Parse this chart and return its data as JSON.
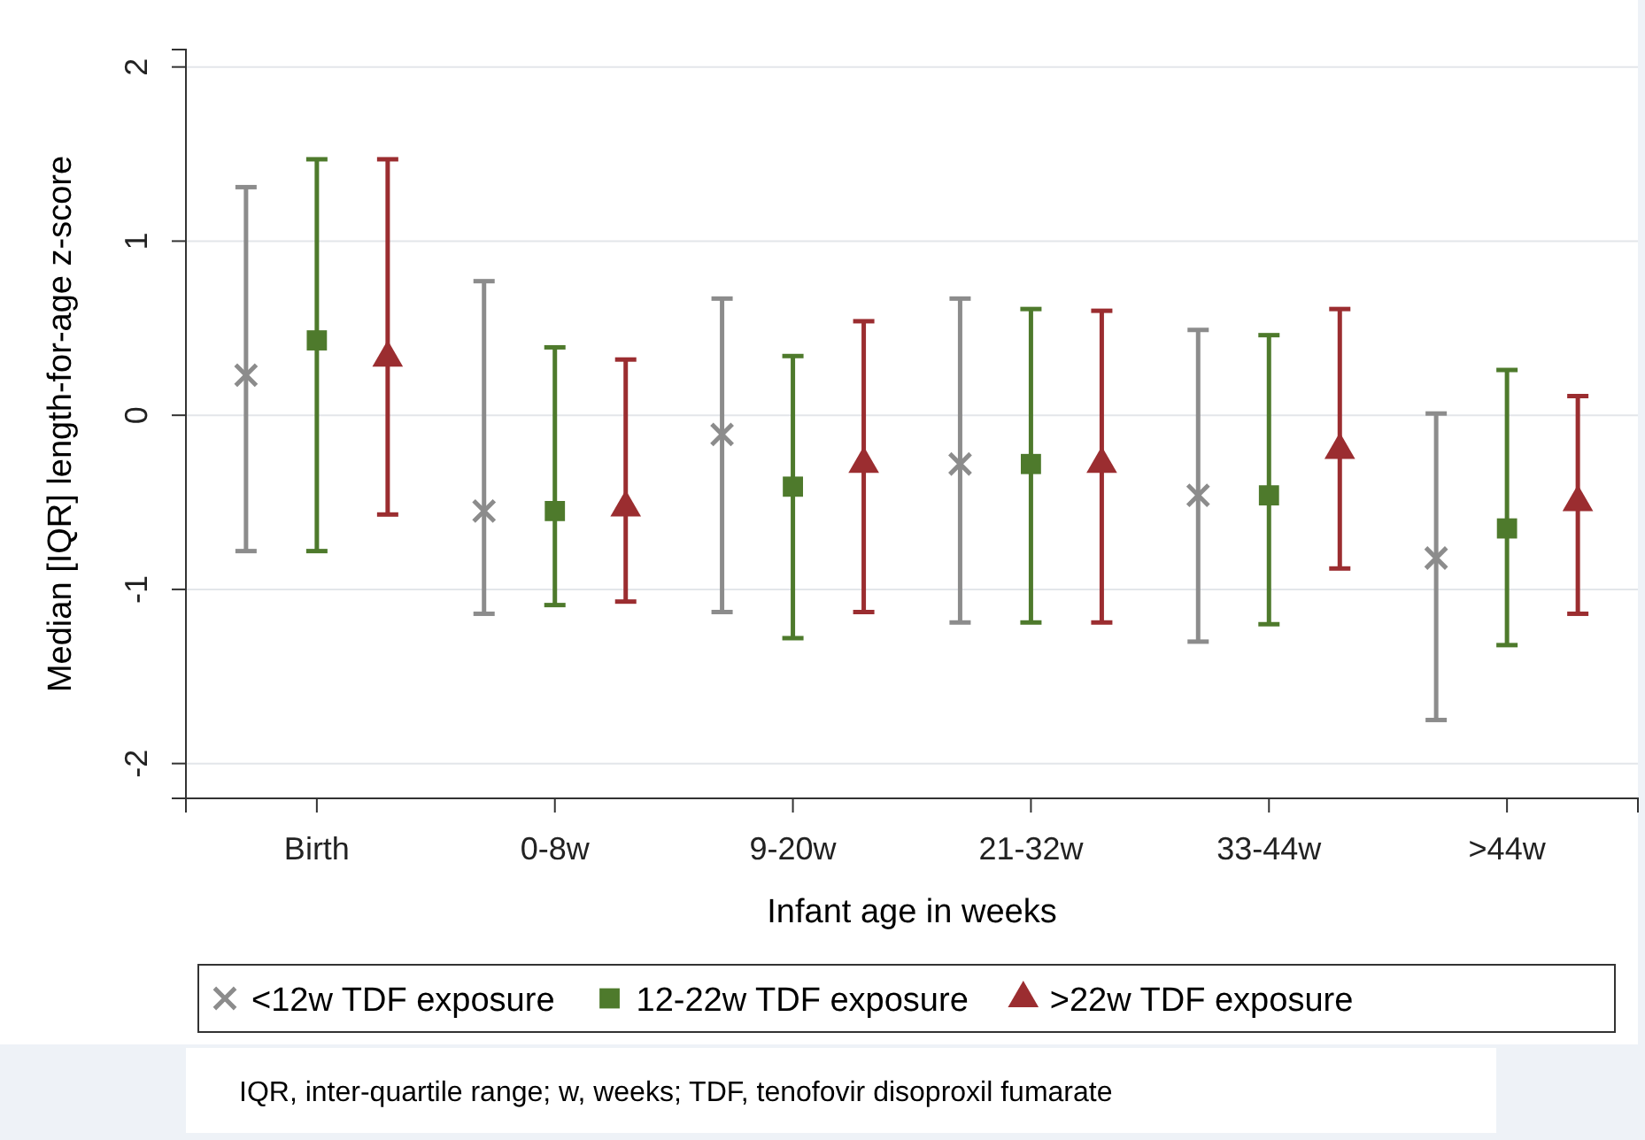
{
  "chart_data": {
    "type": "scatter",
    "xlabel": "Infant age in weeks",
    "ylabel": "Median [IQR] length-for-age z-score",
    "categories": [
      "Birth",
      "0-8w",
      "9-20w",
      "21-32w",
      "33-44w",
      ">44w"
    ],
    "ylim": [
      -2.2,
      2.1
    ],
    "yticks": [
      -2,
      -1,
      0,
      1,
      2
    ],
    "grid": "y",
    "legend": "bottom",
    "series": [
      {
        "name": "<12w TDF exposure",
        "color": "#8c8c8c",
        "marker": "cross",
        "values": [
          0.23,
          -0.55,
          -0.11,
          -0.28,
          -0.46,
          -0.82
        ],
        "errors": [
          [
            -0.78,
            1.31
          ],
          [
            -1.14,
            0.77
          ],
          [
            -1.13,
            0.67
          ],
          [
            -1.19,
            0.67
          ],
          [
            -1.3,
            0.49
          ],
          [
            -1.75,
            0.01
          ]
        ]
      },
      {
        "name": "12-22w TDF exposure",
        "color": "#4e7a2c",
        "marker": "square",
        "values": [
          0.43,
          -0.55,
          -0.41,
          -0.28,
          -0.46,
          -0.65
        ],
        "errors": [
          [
            -0.78,
            1.47
          ],
          [
            -1.09,
            0.39
          ],
          [
            -1.28,
            0.34
          ],
          [
            -1.19,
            0.61
          ],
          [
            -1.2,
            0.46
          ],
          [
            -1.32,
            0.26
          ]
        ]
      },
      {
        "name": ">22w TDF exposure",
        "color": "#9b2d30",
        "marker": "triangle",
        "values": [
          0.33,
          -0.53,
          -0.28,
          -0.28,
          -0.2,
          -0.5
        ],
        "errors": [
          [
            -0.57,
            1.47
          ],
          [
            -1.07,
            0.32
          ],
          [
            -1.13,
            0.54
          ],
          [
            -1.19,
            0.6
          ],
          [
            -0.88,
            0.61
          ],
          [
            -1.14,
            0.11
          ]
        ]
      }
    ],
    "annotations": [
      "IQR, inter-quartile range; w, weeks; TDF, tenofovir disoproxil fumarate"
    ]
  }
}
